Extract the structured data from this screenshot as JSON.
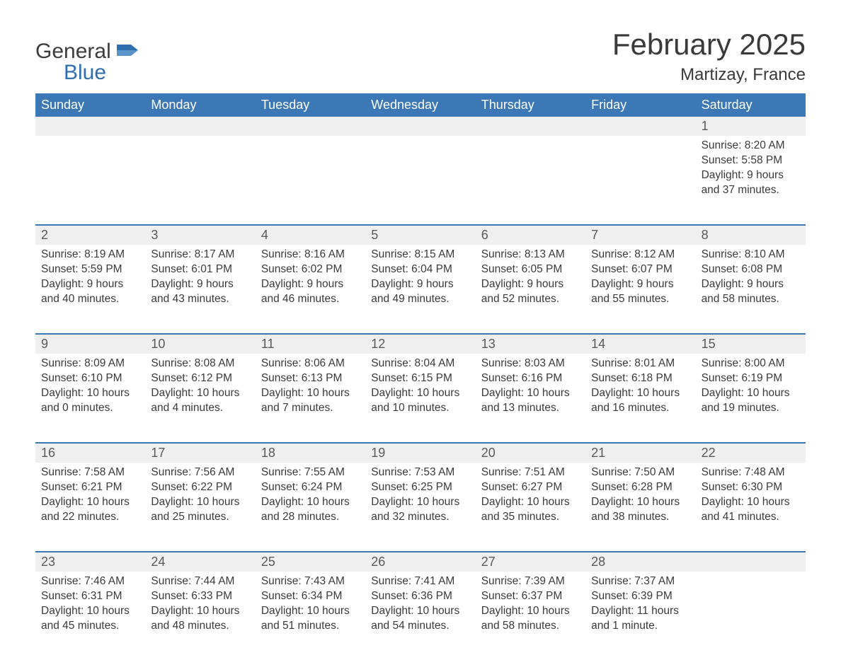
{
  "colors": {
    "header_bg": "#3b78b5",
    "header_text": "#ffffff",
    "daynum_bg": "#efefef",
    "text": "#3a3a3a",
    "rule": "#3b78b5",
    "logo_blue": "#2f6fb0",
    "logo_gray": "#3c3c3c",
    "background": "#ffffff"
  },
  "logo": {
    "line1": "General",
    "line2": "Blue"
  },
  "title": "February 2025",
  "location": "Martizay, France",
  "dow": [
    "Sunday",
    "Monday",
    "Tuesday",
    "Wednesday",
    "Thursday",
    "Friday",
    "Saturday"
  ],
  "weeks": [
    [
      null,
      null,
      null,
      null,
      null,
      null,
      {
        "n": "1",
        "sunrise": "8:20 AM",
        "sunset": "5:58 PM",
        "daylight": "9 hours and 37 minutes."
      }
    ],
    [
      {
        "n": "2",
        "sunrise": "8:19 AM",
        "sunset": "5:59 PM",
        "daylight": "9 hours and 40 minutes."
      },
      {
        "n": "3",
        "sunrise": "8:17 AM",
        "sunset": "6:01 PM",
        "daylight": "9 hours and 43 minutes."
      },
      {
        "n": "4",
        "sunrise": "8:16 AM",
        "sunset": "6:02 PM",
        "daylight": "9 hours and 46 minutes."
      },
      {
        "n": "5",
        "sunrise": "8:15 AM",
        "sunset": "6:04 PM",
        "daylight": "9 hours and 49 minutes."
      },
      {
        "n": "6",
        "sunrise": "8:13 AM",
        "sunset": "6:05 PM",
        "daylight": "9 hours and 52 minutes."
      },
      {
        "n": "7",
        "sunrise": "8:12 AM",
        "sunset": "6:07 PM",
        "daylight": "9 hours and 55 minutes."
      },
      {
        "n": "8",
        "sunrise": "8:10 AM",
        "sunset": "6:08 PM",
        "daylight": "9 hours and 58 minutes."
      }
    ],
    [
      {
        "n": "9",
        "sunrise": "8:09 AM",
        "sunset": "6:10 PM",
        "daylight": "10 hours and 0 minutes."
      },
      {
        "n": "10",
        "sunrise": "8:08 AM",
        "sunset": "6:12 PM",
        "daylight": "10 hours and 4 minutes."
      },
      {
        "n": "11",
        "sunrise": "8:06 AM",
        "sunset": "6:13 PM",
        "daylight": "10 hours and 7 minutes."
      },
      {
        "n": "12",
        "sunrise": "8:04 AM",
        "sunset": "6:15 PM",
        "daylight": "10 hours and 10 minutes."
      },
      {
        "n": "13",
        "sunrise": "8:03 AM",
        "sunset": "6:16 PM",
        "daylight": "10 hours and 13 minutes."
      },
      {
        "n": "14",
        "sunrise": "8:01 AM",
        "sunset": "6:18 PM",
        "daylight": "10 hours and 16 minutes."
      },
      {
        "n": "15",
        "sunrise": "8:00 AM",
        "sunset": "6:19 PM",
        "daylight": "10 hours and 19 minutes."
      }
    ],
    [
      {
        "n": "16",
        "sunrise": "7:58 AM",
        "sunset": "6:21 PM",
        "daylight": "10 hours and 22 minutes."
      },
      {
        "n": "17",
        "sunrise": "7:56 AM",
        "sunset": "6:22 PM",
        "daylight": "10 hours and 25 minutes."
      },
      {
        "n": "18",
        "sunrise": "7:55 AM",
        "sunset": "6:24 PM",
        "daylight": "10 hours and 28 minutes."
      },
      {
        "n": "19",
        "sunrise": "7:53 AM",
        "sunset": "6:25 PM",
        "daylight": "10 hours and 32 minutes."
      },
      {
        "n": "20",
        "sunrise": "7:51 AM",
        "sunset": "6:27 PM",
        "daylight": "10 hours and 35 minutes."
      },
      {
        "n": "21",
        "sunrise": "7:50 AM",
        "sunset": "6:28 PM",
        "daylight": "10 hours and 38 minutes."
      },
      {
        "n": "22",
        "sunrise": "7:48 AM",
        "sunset": "6:30 PM",
        "daylight": "10 hours and 41 minutes."
      }
    ],
    [
      {
        "n": "23",
        "sunrise": "7:46 AM",
        "sunset": "6:31 PM",
        "daylight": "10 hours and 45 minutes."
      },
      {
        "n": "24",
        "sunrise": "7:44 AM",
        "sunset": "6:33 PM",
        "daylight": "10 hours and 48 minutes."
      },
      {
        "n": "25",
        "sunrise": "7:43 AM",
        "sunset": "6:34 PM",
        "daylight": "10 hours and 51 minutes."
      },
      {
        "n": "26",
        "sunrise": "7:41 AM",
        "sunset": "6:36 PM",
        "daylight": "10 hours and 54 minutes."
      },
      {
        "n": "27",
        "sunrise": "7:39 AM",
        "sunset": "6:37 PM",
        "daylight": "10 hours and 58 minutes."
      },
      {
        "n": "28",
        "sunrise": "7:37 AM",
        "sunset": "6:39 PM",
        "daylight": "11 hours and 1 minute."
      },
      null
    ]
  ],
  "labels": {
    "sunrise": "Sunrise: ",
    "sunset": "Sunset: ",
    "daylight": "Daylight: "
  }
}
